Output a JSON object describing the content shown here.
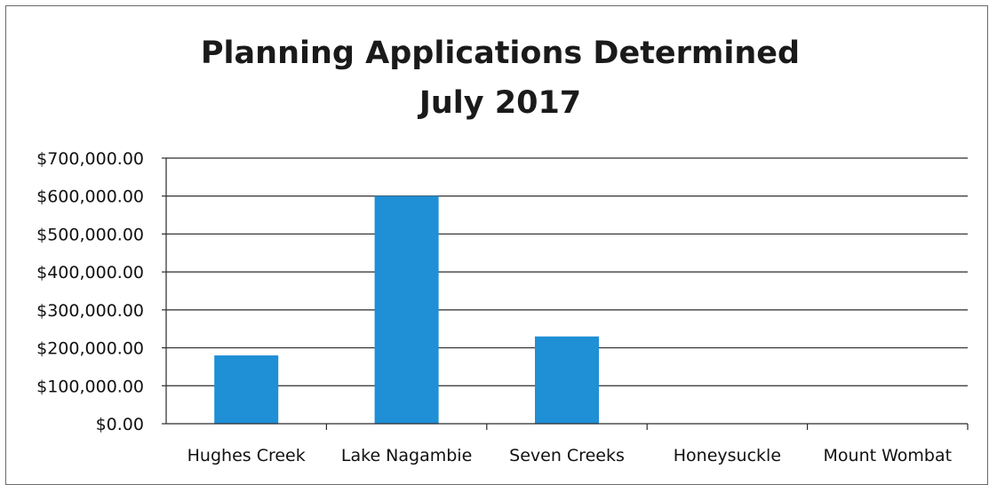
{
  "chart_data": {
    "type": "bar",
    "title": [
      "Planning Applications Determined",
      "July 2017"
    ],
    "categories": [
      "Hughes Creek",
      "Lake Nagambie",
      "Seven Creeks",
      "Honeysuckle",
      "Mount Wombat"
    ],
    "values": [
      180000,
      600000,
      230000,
      0,
      0
    ],
    "ylim": [
      0,
      700000
    ],
    "yticks": [
      "$0.00",
      "$100,000.00",
      "$200,000.00",
      "$300,000.00",
      "$400,000.00",
      "$500,000.00",
      "$600,000.00",
      "$700,000.00"
    ],
    "xlabel": "",
    "ylabel": "",
    "grid": true,
    "legend": "none",
    "bar_color": "#1f8fd6"
  }
}
